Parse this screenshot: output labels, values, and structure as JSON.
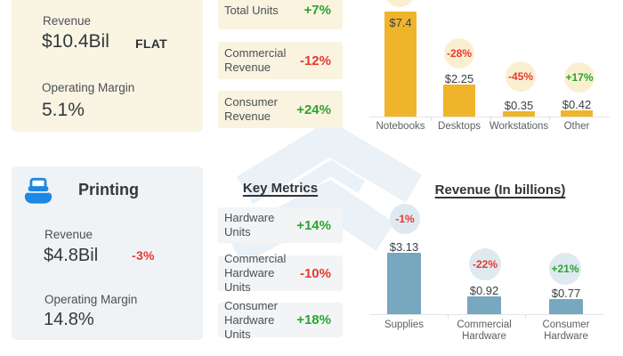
{
  "colors": {
    "green": "#2ba52e",
    "red": "#e73a2e",
    "yellow_bar": "#f0b42b",
    "blue_bar": "#78a7c0",
    "cream_panel": "#faf5e3",
    "gray_panel": "#eff3f6",
    "printer_blue": "#1c87e5"
  },
  "top_section": {
    "summary": {
      "revenue_label": "Revenue",
      "revenue_value": "$10.4Bil",
      "revenue_change": "FLAT",
      "margin_label": "Operating Margin",
      "margin_value": "5.1%"
    },
    "metrics": [
      {
        "label_lines": [
          "Total Units"
        ],
        "value": "+7%",
        "trend": "up"
      },
      {
        "label_lines": [
          "Commercial",
          "Revenue"
        ],
        "value": "-12%",
        "trend": "down"
      },
      {
        "label_lines": [
          "Consumer",
          "Revenue"
        ],
        "value": "+24%",
        "trend": "up"
      }
    ]
  },
  "bottom_section": {
    "title": "Printing",
    "summary": {
      "revenue_label": "Revenue",
      "revenue_value": "$4.8Bil",
      "revenue_change": "-3%",
      "margin_label": "Operating Margin",
      "margin_value": "14.8%"
    },
    "metrics_title": "Key Metrics",
    "metrics": [
      {
        "label_lines": [
          "Hardware",
          "Units"
        ],
        "value": "+14%",
        "trend": "up"
      },
      {
        "label_lines": [
          "Commercial",
          "Hardware Units"
        ],
        "value": "-10%",
        "trend": "down"
      },
      {
        "label_lines": [
          "Consumer",
          "Hardware Units"
        ],
        "value": "+18%",
        "trend": "up"
      }
    ],
    "chart_title": "Revenue (In billions)"
  },
  "chart_data": [
    {
      "type": "bar",
      "title": "",
      "categories": [
        "Notebooks",
        "Desktops",
        "Workstations",
        "Other"
      ],
      "category_lines": [
        [
          "Notebooks"
        ],
        [
          "Desktops"
        ],
        [
          "Workstations"
        ],
        [
          "Other"
        ]
      ],
      "values": [
        7.4,
        2.25,
        0.35,
        0.42
      ],
      "value_labels": [
        "$7.4",
        "$2.25",
        "$0.35",
        "$0.42"
      ],
      "changes": [
        "",
        "-28%",
        "-45%",
        "+17%"
      ],
      "bar_color": "#f0b42b",
      "badge_color": "#fbefd2",
      "xlabel": "",
      "ylabel": "",
      "ylim": [
        0,
        8
      ],
      "grid": false,
      "unit": "billions USD"
    },
    {
      "type": "bar",
      "title": "Revenue (In billions)",
      "categories": [
        "Supplies",
        "Commercial Hardware",
        "Consumer Hardware"
      ],
      "category_lines": [
        [
          "Supplies"
        ],
        [
          "Commercial",
          "Hardware"
        ],
        [
          "Consumer Hardware"
        ]
      ],
      "values": [
        3.13,
        0.92,
        0.77
      ],
      "value_labels": [
        "$3.13",
        "$0.92",
        "$0.77"
      ],
      "changes": [
        "-1%",
        "-22%",
        "+21%"
      ],
      "bar_color": "#78a7c0",
      "badge_color": "#dfe9f0",
      "xlabel": "",
      "ylabel": "",
      "ylim": [
        0,
        3.5
      ],
      "grid": false,
      "unit": "billions USD"
    }
  ]
}
